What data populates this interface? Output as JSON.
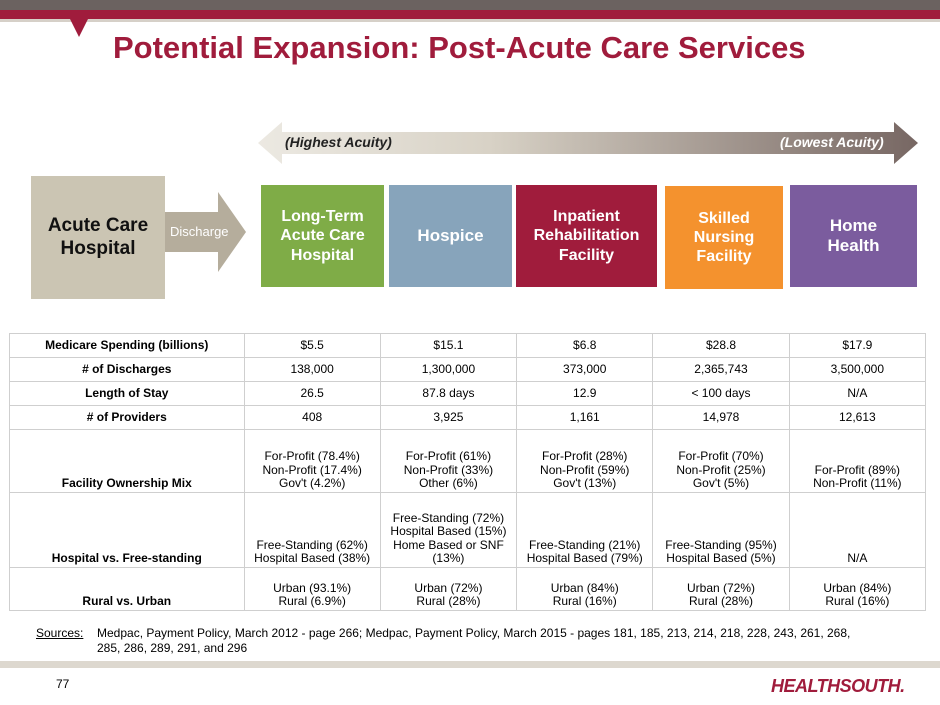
{
  "title": "Potential Expansion: Post-Acute Care Services",
  "acuity": {
    "left": "(Highest Acuity)",
    "right": "(Lowest Acuity)"
  },
  "acute_box": {
    "line1": "Acute Care",
    "line2": "Hospital"
  },
  "discharge": "Discharge",
  "care_boxes": {
    "ltach": [
      "Long-Term",
      "Acute Care",
      "Hospital"
    ],
    "hospice": [
      "Hospice"
    ],
    "irf": [
      "Inpatient",
      "Rehabilitation",
      "Facility"
    ],
    "snf": [
      "Skilled",
      "Nursing",
      "Facility"
    ],
    "home": [
      "Home",
      "Health"
    ]
  },
  "table": {
    "rows": [
      {
        "label": "Medicare Spending (billions)",
        "cells": [
          [
            "$5.5"
          ],
          [
            "$15.1"
          ],
          [
            "$6.8"
          ],
          [
            "$28.8"
          ],
          [
            "$17.9"
          ]
        ]
      },
      {
        "label": "# of Discharges",
        "cells": [
          [
            "138,000"
          ],
          [
            "1,300,000"
          ],
          [
            "373,000"
          ],
          [
            "2,365,743"
          ],
          [
            "3,500,000"
          ]
        ]
      },
      {
        "label": "Length of Stay",
        "cells": [
          [
            "26.5"
          ],
          [
            "87.8 days"
          ],
          [
            "12.9"
          ],
          [
            "< 100 days"
          ],
          [
            "N/A"
          ]
        ]
      },
      {
        "label": "# of Providers",
        "cells": [
          [
            "408"
          ],
          [
            "3,925"
          ],
          [
            "1,161"
          ],
          [
            "14,978"
          ],
          [
            "12,613"
          ]
        ]
      },
      {
        "label": "Facility Ownership Mix",
        "cells": [
          [
            "For-Profit (78.4%)",
            "Non-Profit (17.4%)",
            "Gov't (4.2%)"
          ],
          [
            "For-Profit (61%)",
            "Non-Profit (33%)",
            "Other (6%)"
          ],
          [
            "For-Profit (28%)",
            "Non-Profit (59%)",
            "Gov't (13%)"
          ],
          [
            "For-Profit (70%)",
            "Non-Profit (25%)",
            "Gov't (5%)"
          ],
          [
            "For-Profit (89%)",
            "Non-Profit (11%)"
          ]
        ]
      },
      {
        "label": "Hospital vs. Free-standing",
        "cells": [
          [
            "Free-Standing (62%)",
            "Hospital Based (38%)"
          ],
          [
            "Free-Standing (72%)",
            "Hospital Based (15%)",
            "Home Based or SNF",
            "(13%)"
          ],
          [
            "Free-Standing (21%)",
            "Hospital Based (79%)"
          ],
          [
            "Free-Standing (95%)",
            "Hospital Based (5%)"
          ],
          [
            "N/A"
          ]
        ]
      },
      {
        "label": "Rural vs. Urban",
        "cells": [
          [
            "Urban (93.1%)",
            "Rural (6.9%)"
          ],
          [
            "Urban (72%)",
            "Rural (28%)"
          ],
          [
            "Urban (84%)",
            "Rural (16%)"
          ],
          [
            "Urban (72%)",
            "Rural (28%)"
          ],
          [
            "Urban (84%)",
            "Rural (16%)"
          ]
        ]
      }
    ]
  },
  "sources": {
    "label": "Sources:",
    "text": "Medpac, Payment Policy, March 2012 - page 266; Medpac, Payment Policy, March 2015 - pages 181, 185, 213, 214, 218, 228, 243, 261, 268, 285, 286, 289, 291, and 296"
  },
  "page_number": "77",
  "logo": "HEALTHSOUTH.",
  "colors": {
    "brand": "#a01c3c",
    "ltach": "#7fac47",
    "hospice": "#87a4bb",
    "snf": "#f4922e",
    "home": "#7b5c9e",
    "acute": "#cbc5b3"
  }
}
